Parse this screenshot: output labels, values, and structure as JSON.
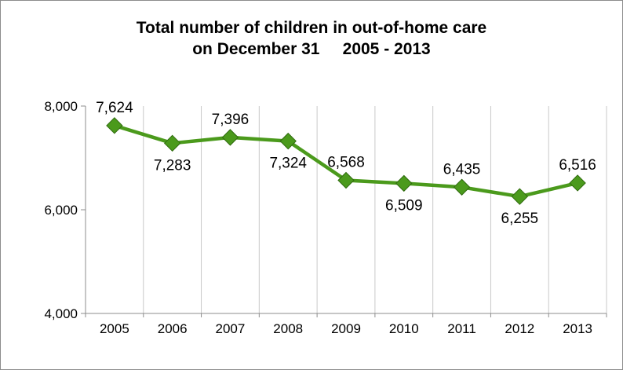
{
  "chart_data": {
    "type": "line",
    "title_line1": "Total number of children in out-of-home care",
    "title_line2": "on December 31     2005 - 2013",
    "xlabel": "",
    "ylabel": "",
    "categories": [
      "2005",
      "2006",
      "2007",
      "2008",
      "2009",
      "2010",
      "2011",
      "2012",
      "2013"
    ],
    "series": [
      {
        "values": [
          7624,
          7283,
          7396,
          7324,
          6568,
          6509,
          6435,
          6255,
          6516
        ],
        "labels": [
          "7,624",
          "7,283",
          "7,396",
          "7,324",
          "6,568",
          "6,509",
          "6,435",
          "6,255",
          "6,516"
        ],
        "label_positions": [
          "above",
          "below",
          "above",
          "below",
          "above",
          "below",
          "above",
          "below",
          "above"
        ],
        "color": "#4b9a1c",
        "marker": "diamond"
      }
    ],
    "ylim": [
      4000,
      8000
    ],
    "yticks": [
      4000,
      6000,
      8000
    ],
    "ytick_labels": [
      "4,000",
      "6,000",
      "8,000"
    ],
    "grid": "vertical",
    "grid_color": "#c8c8c8",
    "axis_color": "#8c8c8c",
    "legend": "none"
  }
}
